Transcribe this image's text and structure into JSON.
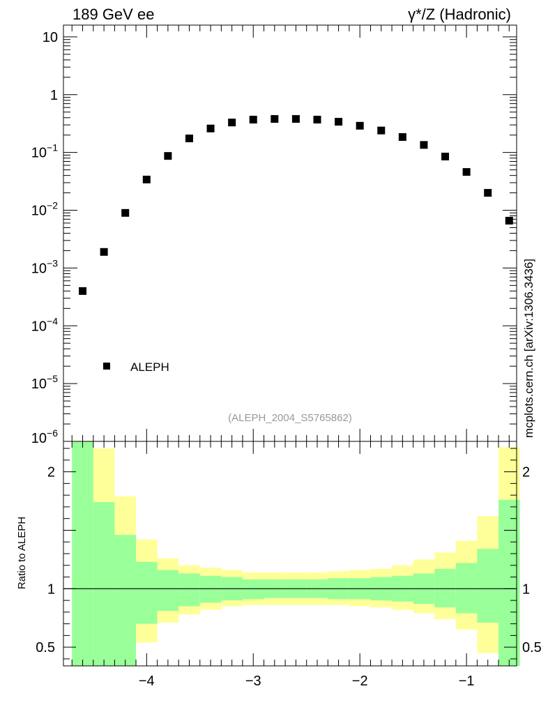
{
  "header": {
    "left_title": "189 GeV ee",
    "right_title": "γ*/Z (Hadronic)"
  },
  "watermark": "mcplots.cern.ch [arXiv:1306.3436]",
  "analysis_id": "(ALEPH_2004_S5765862)",
  "colors": {
    "marker": "#000000",
    "band_inner": "#99ff99",
    "band_outer": "#ffff99",
    "id_text": "#999999",
    "watermark_text": "#555555"
  },
  "chart_data": [
    {
      "type": "scatter",
      "panel": "main",
      "yscale": "log",
      "xlim": [
        -4.78,
        -0.53
      ],
      "ylim": [
        1e-06,
        16
      ],
      "y_ticks": [
        {
          "value": 10,
          "base": "10",
          "exp": ""
        },
        {
          "value": 1,
          "base": "1",
          "exp": ""
        },
        {
          "value": 0.1,
          "base": "10",
          "exp": "−1"
        },
        {
          "value": 0.01,
          "base": "10",
          "exp": "−2"
        },
        {
          "value": 0.001,
          "base": "10",
          "exp": "−3"
        },
        {
          "value": 0.0001,
          "base": "10",
          "exp": "−4"
        },
        {
          "value": 1e-05,
          "base": "10",
          "exp": "−5"
        },
        {
          "value": 1e-06,
          "base": "10",
          "exp": "−6"
        }
      ],
      "legend": {
        "placement": "bottom-left",
        "entries": [
          "ALEPH"
        ]
      },
      "series": [
        {
          "name": "ALEPH",
          "x": [
            -4.6,
            -4.4,
            -4.2,
            -4.0,
            -3.8,
            -3.6,
            -3.4,
            -3.2,
            -3.0,
            -2.8,
            -2.6,
            -2.4,
            -2.2,
            -2.0,
            -1.8,
            -1.6,
            -1.4,
            -1.2,
            -1.0,
            -0.8,
            -0.6
          ],
          "y": [
            0.0004,
            0.0019,
            0.009,
            0.034,
            0.087,
            0.175,
            0.26,
            0.33,
            0.37,
            0.38,
            0.38,
            0.37,
            0.34,
            0.29,
            0.24,
            0.185,
            0.135,
            0.085,
            0.046,
            0.02,
            0.0066
          ]
        }
      ]
    },
    {
      "type": "area",
      "panel": "ratio",
      "ylabel": "Ratio to ALEPH",
      "xlim": [
        -4.78,
        -0.53
      ],
      "ylim": [
        0.34,
        2.26
      ],
      "x_ticks": [
        {
          "value": -4,
          "label": "−4"
        },
        {
          "value": -3,
          "label": "−3"
        },
        {
          "value": -2,
          "label": "−2"
        },
        {
          "value": -1,
          "label": "−1"
        }
      ],
      "y_ticks": [
        {
          "value": 2,
          "label": "2"
        },
        {
          "value": 1,
          "label": "1"
        },
        {
          "value": 0.5,
          "label": "0.5"
        }
      ],
      "reference_line": 1,
      "bins": [
        {
          "x0": -4.7,
          "x1": -4.5,
          "inner": [
            0.34,
            2.26
          ],
          "outer": [
            0.34,
            2.26
          ]
        },
        {
          "x0": -4.5,
          "x1": -4.3,
          "inner": [
            0.34,
            1.74
          ],
          "outer": [
            0.34,
            2.2
          ]
        },
        {
          "x0": -4.3,
          "x1": -4.1,
          "inner": [
            0.34,
            1.46
          ],
          "outer": [
            0.68,
            1.79
          ]
        },
        {
          "x0": -4.1,
          "x1": -3.9,
          "inner": [
            0.7,
            1.23
          ],
          "outer": [
            0.54,
            1.42
          ]
        },
        {
          "x0": -3.9,
          "x1": -3.7,
          "inner": [
            0.81,
            1.16
          ],
          "outer": [
            0.71,
            1.26
          ]
        },
        {
          "x0": -3.7,
          "x1": -3.5,
          "inner": [
            0.85,
            1.13
          ],
          "outer": [
            0.78,
            1.2
          ]
        },
        {
          "x0": -3.5,
          "x1": -3.3,
          "inner": [
            0.88,
            1.11
          ],
          "outer": [
            0.82,
            1.18
          ]
        },
        {
          "x0": -3.3,
          "x1": -3.1,
          "inner": [
            0.9,
            1.1
          ],
          "outer": [
            0.85,
            1.16
          ]
        },
        {
          "x0": -3.1,
          "x1": -2.9,
          "inner": [
            0.91,
            1.08
          ],
          "outer": [
            0.86,
            1.14
          ]
        },
        {
          "x0": -2.9,
          "x1": -2.7,
          "inner": [
            0.92,
            1.08
          ],
          "outer": [
            0.86,
            1.14
          ]
        },
        {
          "x0": -2.7,
          "x1": -2.5,
          "inner": [
            0.92,
            1.08
          ],
          "outer": [
            0.86,
            1.14
          ]
        },
        {
          "x0": -2.5,
          "x1": -2.3,
          "inner": [
            0.92,
            1.08
          ],
          "outer": [
            0.86,
            1.14
          ]
        },
        {
          "x0": -2.3,
          "x1": -2.1,
          "inner": [
            0.91,
            1.09
          ],
          "outer": [
            0.86,
            1.15
          ]
        },
        {
          "x0": -2.1,
          "x1": -1.9,
          "inner": [
            0.91,
            1.09
          ],
          "outer": [
            0.85,
            1.16
          ]
        },
        {
          "x0": -1.9,
          "x1": -1.7,
          "inner": [
            0.9,
            1.1
          ],
          "outer": [
            0.84,
            1.17
          ]
        },
        {
          "x0": -1.7,
          "x1": -1.5,
          "inner": [
            0.89,
            1.11
          ],
          "outer": [
            0.82,
            1.2
          ]
        },
        {
          "x0": -1.5,
          "x1": -1.3,
          "inner": [
            0.87,
            1.13
          ],
          "outer": [
            0.79,
            1.25
          ]
        },
        {
          "x0": -1.3,
          "x1": -1.1,
          "inner": [
            0.84,
            1.17
          ],
          "outer": [
            0.74,
            1.31
          ]
        },
        {
          "x0": -1.1,
          "x1": -0.9,
          "inner": [
            0.79,
            1.22
          ],
          "outer": [
            0.65,
            1.41
          ]
        },
        {
          "x0": -0.9,
          "x1": -0.7,
          "inner": [
            0.71,
            1.34
          ],
          "outer": [
            0.45,
            1.62
          ]
        },
        {
          "x0": -0.7,
          "x1": -0.5,
          "inner": [
            0.34,
            1.76
          ],
          "outer": [
            0.34,
            2.21
          ]
        }
      ]
    }
  ]
}
